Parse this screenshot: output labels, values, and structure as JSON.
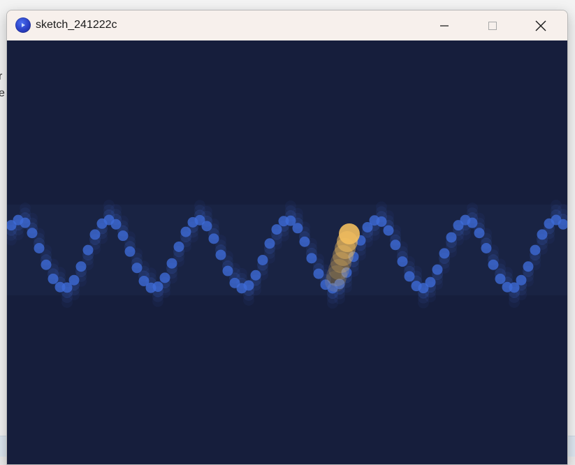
{
  "background": {
    "fragment_line_1": "r",
    "fragment_line_2": "e"
  },
  "window": {
    "title": "sketch_241222c",
    "app_icon": "processing-app-icon",
    "controls": {
      "minimize_icon": "minimize-icon",
      "maximize_icon": "maximize-icon",
      "close_icon": "close-icon"
    }
  },
  "sketch": {
    "background_color": "#161e3c",
    "wave_color": "#3d6ad6",
    "ball_color": "#f2be5e"
  }
}
